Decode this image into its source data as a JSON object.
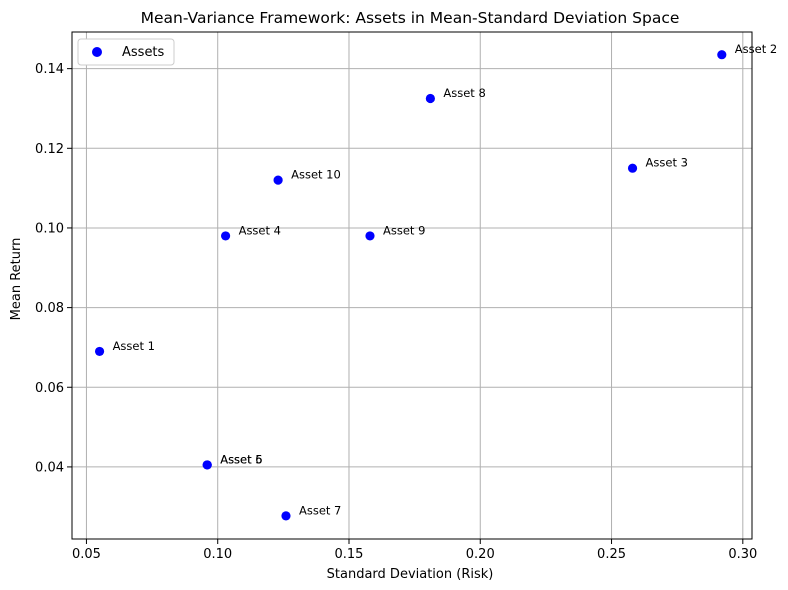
{
  "chart_data": {
    "type": "scatter",
    "title": "Mean-Variance Framework: Assets in Mean-Standard Deviation Space",
    "xlabel": "Standard Deviation (Risk)",
    "ylabel": "Mean Return",
    "xlim": [
      0.0445,
      0.3035
    ],
    "ylim": [
      0.0219,
      0.1492
    ],
    "xticks": [
      0.05,
      0.1,
      0.15,
      0.2,
      0.25,
      0.3
    ],
    "xtick_labels": [
      "0.05",
      "0.10",
      "0.15",
      "0.20",
      "0.25",
      "0.30"
    ],
    "yticks": [
      0.04,
      0.06,
      0.08,
      0.1,
      0.12,
      0.14
    ],
    "ytick_labels": [
      "0.04",
      "0.06",
      "0.08",
      "0.10",
      "0.12",
      "0.14"
    ],
    "grid": true,
    "legend_position": "top-left",
    "series": [
      {
        "name": "Assets",
        "color": "#0000ff",
        "points": [
          {
            "label": "Asset 1",
            "x": 0.055,
            "y": 0.069
          },
          {
            "label": "Asset 2",
            "x": 0.292,
            "y": 0.1435
          },
          {
            "label": "Asset 3",
            "x": 0.258,
            "y": 0.115
          },
          {
            "label": "Asset 4",
            "x": 0.103,
            "y": 0.098
          },
          {
            "label": "Asset 5",
            "x": 0.096,
            "y": 0.0405
          },
          {
            "label": "Asset 6",
            "x": 0.096,
            "y": 0.0405
          },
          {
            "label": "Asset 7",
            "x": 0.126,
            "y": 0.0277
          },
          {
            "label": "Asset 8",
            "x": 0.181,
            "y": 0.1325
          },
          {
            "label": "Asset 9",
            "x": 0.158,
            "y": 0.098
          },
          {
            "label": "Asset 10",
            "x": 0.123,
            "y": 0.112
          }
        ]
      }
    ]
  }
}
